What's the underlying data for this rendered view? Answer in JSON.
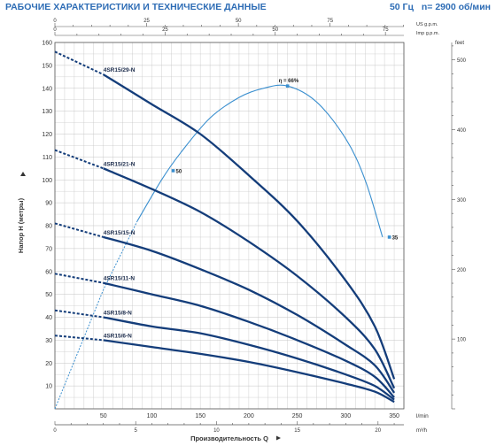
{
  "header": {
    "title": "РАБОЧИЕ ХАРАКТЕРИСТИКИ И ТЕХНИЧЕСКИЕ ДАННЫЕ",
    "frequency": "50 Гц",
    "speed": "n= 2900 об/мин"
  },
  "colors": {
    "pump_curve": "#143d7a",
    "efficiency_curve": "#3a8fcf",
    "header": "#2d6cb5",
    "grid": "#c4c4c4",
    "text": "#333333"
  },
  "chart_data": {
    "type": "line",
    "xlabel": "Производительность Q",
    "ylabel": "Напор H (метры)",
    "x_unit": "l/min",
    "xlim": [
      0,
      360
    ],
    "ylim": [
      0,
      160
    ],
    "x_ticks": [
      50,
      100,
      150,
      200,
      250,
      300,
      350
    ],
    "y_ticks": [
      10,
      20,
      30,
      40,
      50,
      60,
      70,
      80,
      90,
      100,
      110,
      120,
      130,
      140,
      150,
      160
    ],
    "secondary_axes": {
      "top": {
        "unit": "US g.p.m.",
        "label_values": [
          0,
          25,
          50,
          75
        ],
        "label_positions_lmin": [
          0,
          94.6,
          189.3,
          283.9
        ]
      },
      "top_imp": {
        "unit": "Imp g.p.m.",
        "label_values": [
          0,
          25,
          50,
          75
        ],
        "label_positions_lmin": [
          0,
          113.7,
          227.3,
          341.0
        ]
      },
      "bottom": {
        "unit": "m³/h",
        "label_values": [
          0,
          5,
          10,
          15,
          20
        ],
        "label_positions_lmin": [
          0,
          83.3,
          166.7,
          250,
          333.3
        ]
      },
      "right": {
        "unit": "feet",
        "label_values": [
          100,
          200,
          300,
          400,
          500
        ],
        "label_positions_m": [
          30.48,
          60.96,
          91.44,
          121.92,
          152.4
        ]
      }
    },
    "series": [
      {
        "name": "4SR15/29-N",
        "dashed_x": [
          0,
          50
        ],
        "dashed_y": [
          156,
          146
        ],
        "x": [
          50,
          100,
          150,
          200,
          250,
          300,
          330,
          350
        ],
        "y": [
          146,
          133,
          120,
          102,
          82,
          56,
          36,
          13
        ]
      },
      {
        "name": "4SR15/21-N",
        "dashed_x": [
          0,
          50
        ],
        "dashed_y": [
          113,
          105
        ],
        "x": [
          50,
          100,
          150,
          200,
          250,
          300,
          330,
          350
        ],
        "y": [
          105,
          96,
          86,
          73,
          58,
          40,
          26,
          9
        ]
      },
      {
        "name": "4SR15/15-N",
        "dashed_x": [
          0,
          50
        ],
        "dashed_y": [
          81,
          75
        ],
        "x": [
          50,
          100,
          150,
          200,
          250,
          300,
          330,
          350
        ],
        "y": [
          75,
          69,
          61,
          52,
          41,
          28,
          19,
          7
        ]
      },
      {
        "name": "4SR15/11-N",
        "dashed_x": [
          0,
          50
        ],
        "dashed_y": [
          59,
          55
        ],
        "x": [
          50,
          100,
          150,
          200,
          250,
          300,
          330,
          350
        ],
        "y": [
          55,
          50,
          45,
          38,
          30,
          21,
          14,
          5
        ]
      },
      {
        "name": "4SR15/8-N",
        "dashed_x": [
          0,
          50
        ],
        "dashed_y": [
          43,
          40
        ],
        "x": [
          50,
          100,
          150,
          200,
          250,
          300,
          330,
          350
        ],
        "y": [
          40,
          36,
          33,
          28,
          22,
          15,
          10,
          4
        ]
      },
      {
        "name": "4SR15/6-N",
        "dashed_x": [
          0,
          50
        ],
        "dashed_y": [
          32,
          30
        ],
        "x": [
          50,
          100,
          150,
          200,
          250,
          300,
          330,
          350
        ],
        "y": [
          30,
          27,
          24,
          20.5,
          16,
          11,
          7.5,
          3
        ]
      }
    ],
    "efficiency_curve": {
      "name": "η",
      "dashed_x": [
        0,
        50,
        85
      ],
      "dashed_y": [
        0,
        52,
        82
      ],
      "x": [
        85,
        110,
        130,
        160,
        190,
        215,
        240,
        270,
        300,
        320,
        338
      ],
      "y": [
        82,
        100,
        112,
        127,
        136,
        140,
        141,
        134,
        118,
        100,
        75
      ],
      "markers": [
        {
          "x": 122,
          "y": 104,
          "label": "50"
        },
        {
          "x": 240,
          "y": 141,
          "label": "η = 66%"
        },
        {
          "x": 345,
          "y": 75,
          "label": "35"
        }
      ]
    },
    "grid": true
  }
}
